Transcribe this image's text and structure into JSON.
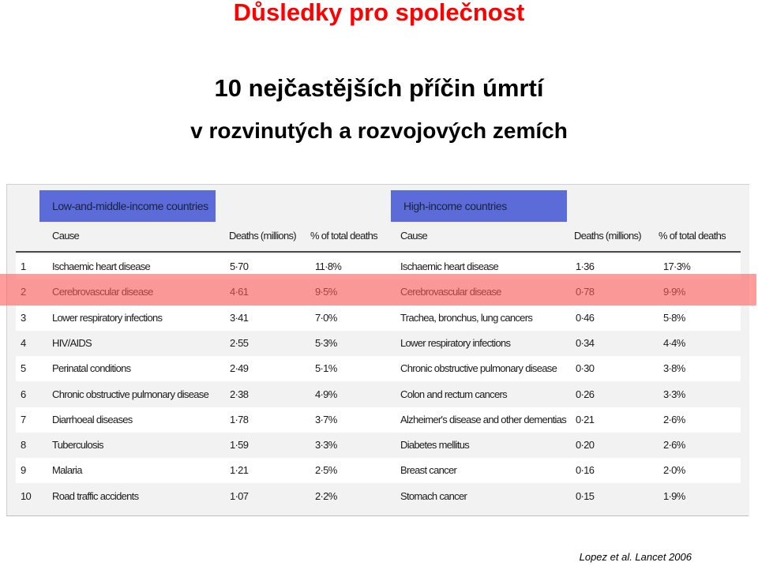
{
  "title": "Důsledky pro společnost",
  "subtitle_1": "10 nejčastějších příčin úmrtí",
  "subtitle_2": "v rozvinutých a rozvojových zemích",
  "table": {
    "group_low": "Low-and-middle-income countries",
    "group_high": "High-income countries",
    "columns": [
      "Cause",
      "Deaths (millions)",
      "% of total deaths",
      "Cause",
      "Deaths (millions)",
      "% of total deaths"
    ],
    "rows": [
      {
        "rank": "1",
        "low_cause": "Ischaemic heart disease",
        "low_deaths": "5·70",
        "low_pct": "11·8%",
        "high_cause": "Ischaemic heart disease",
        "high_deaths": "1·36",
        "high_pct": "17·3%"
      },
      {
        "rank": "2",
        "low_cause": "Cerebrovascular disease",
        "low_deaths": "4·61",
        "low_pct": "9·5%",
        "high_cause": "Cerebrovascular disease",
        "high_deaths": "0·78",
        "high_pct": "9·9%"
      },
      {
        "rank": "3",
        "low_cause": "Lower respiratory infections",
        "low_deaths": "3·41",
        "low_pct": "7·0%",
        "high_cause": "Trachea, bronchus, lung cancers",
        "high_deaths": "0·46",
        "high_pct": "5·8%"
      },
      {
        "rank": "4",
        "low_cause": "HIV/AIDS",
        "low_deaths": "2·55",
        "low_pct": "5·3%",
        "high_cause": "Lower respiratory infections",
        "high_deaths": "0·34",
        "high_pct": "4·4%"
      },
      {
        "rank": "5",
        "low_cause": "Perinatal conditions",
        "low_deaths": "2·49",
        "low_pct": "5·1%",
        "high_cause": "Chronic obstructive pulmonary disease",
        "high_deaths": "0·30",
        "high_pct": "3·8%"
      },
      {
        "rank": "6",
        "low_cause": "Chronic obstructive pulmonary disease",
        "low_deaths": "2·38",
        "low_pct": "4·9%",
        "high_cause": "Colon and rectum cancers",
        "high_deaths": "0·26",
        "high_pct": "3·3%"
      },
      {
        "rank": "7",
        "low_cause": "Diarrhoeal diseases",
        "low_deaths": "1·78",
        "low_pct": "3·7%",
        "high_cause": "Alzheimer's disease and other dementias",
        "high_deaths": "0·21",
        "high_pct": "2·6%"
      },
      {
        "rank": "8",
        "low_cause": "Tuberculosis",
        "low_deaths": "1·59",
        "low_pct": "3·3%",
        "high_cause": "Diabetes mellitus",
        "high_deaths": "0·20",
        "high_pct": "2·6%"
      },
      {
        "rank": "9",
        "low_cause": "Malaria",
        "low_deaths": "1·21",
        "low_pct": "2·5%",
        "high_cause": "Breast cancer",
        "high_deaths": "0·16",
        "high_pct": "2·0%"
      },
      {
        "rank": "10",
        "low_cause": "Road traffic accidents",
        "low_deaths": "1·07",
        "low_pct": "2·2%",
        "high_cause": "Stomach cancer",
        "high_deaths": "0·15",
        "high_pct": "1·9%"
      }
    ],
    "highlighted_row": 2
  },
  "citation": "Lopez et al. Lancet 2006",
  "colors": {
    "title": "#ff0000",
    "group_header": "#5b6bd8",
    "highlight": "#ff5a5a"
  }
}
